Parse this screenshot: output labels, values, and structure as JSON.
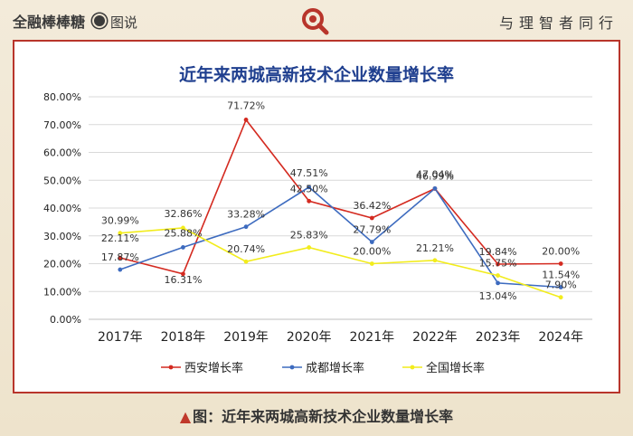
{
  "header": {
    "brand": "全融棒棒糖",
    "tag": "图说",
    "motto": "与理智者同行"
  },
  "caption": {
    "marker": "▲",
    "text": "图：近年来两城高新技术企业数量增长率"
  },
  "chart_data": {
    "type": "line",
    "title": "近年来两城高新技术企业数量增长率",
    "categories": [
      "2017年",
      "2018年",
      "2019年",
      "2020年",
      "2021年",
      "2022年",
      "2023年",
      "2024年"
    ],
    "y_ticks": [
      "0.00%",
      "10.00%",
      "20.00%",
      "30.00%",
      "40.00%",
      "50.00%",
      "60.00%",
      "70.00%",
      "80.00%"
    ],
    "ylim": [
      0,
      80
    ],
    "grid": true,
    "legend_position": "bottom",
    "series": [
      {
        "name": "西安增长率",
        "color": "#d42a20",
        "values": [
          22.11,
          16.31,
          71.72,
          42.5,
          36.42,
          46.99,
          19.84,
          20.0
        ],
        "labels": [
          "22.11%",
          "16.31%",
          "71.72%",
          "42.50%",
          "36.42%",
          "46.99%",
          "19.84%",
          "20.00%"
        ]
      },
      {
        "name": "成都增长率",
        "color": "#3d6bbf",
        "values": [
          17.87,
          25.88,
          33.28,
          47.51,
          27.79,
          47.04,
          13.04,
          11.54
        ],
        "labels": [
          "17.87%",
          "25.88%",
          "33.28%",
          "47.51%",
          "27.79%",
          "47.04%",
          "13.04%",
          "11.54%"
        ]
      },
      {
        "name": "全国增长率",
        "color": "#f2ec1c",
        "values": [
          30.99,
          32.86,
          20.74,
          25.83,
          20.0,
          21.21,
          15.75,
          7.9
        ],
        "labels": [
          "30.99%",
          "32.86%",
          "20.74%",
          "25.83%",
          "20.00%",
          "21.21%",
          "15.75%",
          "7.90%"
        ]
      }
    ]
  }
}
